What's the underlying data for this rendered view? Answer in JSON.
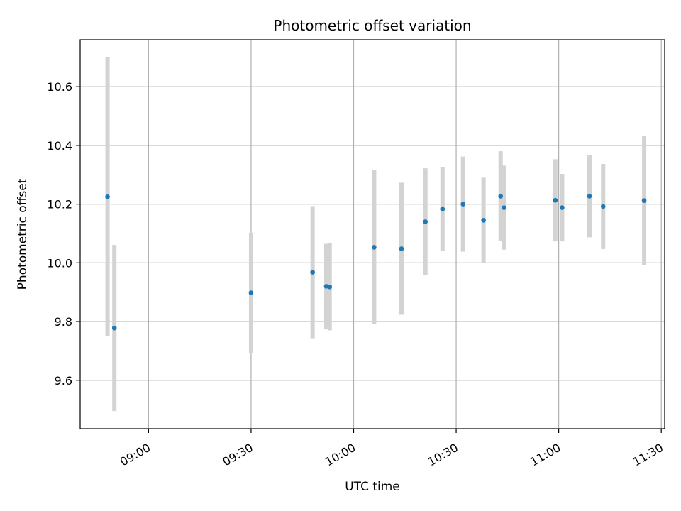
{
  "chart_data": {
    "type": "scatter",
    "title": "Photometric offset variation",
    "xlabel": "UTC time",
    "ylabel": "Photometric offset",
    "grid": true,
    "x_axis": "time",
    "xlim": [
      "08:40",
      "11:31"
    ],
    "ylim": [
      9.435,
      10.76
    ],
    "x_ticks": [
      "09:00",
      "09:30",
      "10:00",
      "10:30",
      "11:00",
      "11:30"
    ],
    "y_ticks": [
      9.6,
      9.8,
      10.0,
      10.2,
      10.4,
      10.6
    ],
    "y_tick_labels": [
      "9.6",
      "9.8",
      "10.0",
      "10.2",
      "10.4",
      "10.6"
    ],
    "marker_color": "#1f77b4",
    "errorbar_color": "#d3d3d3",
    "points": [
      {
        "time": "08:48",
        "y": 10.225,
        "err": 0.475
      },
      {
        "time": "08:50",
        "y": 9.778,
        "err": 0.283
      },
      {
        "time": "09:30",
        "y": 9.898,
        "err": 0.205
      },
      {
        "time": "09:48",
        "y": 9.968,
        "err": 0.225
      },
      {
        "time": "09:52",
        "y": 9.92,
        "err": 0.145
      },
      {
        "time": "09:53",
        "y": 9.918,
        "err": 0.148
      },
      {
        "time": "10:06",
        "y": 10.053,
        "err": 0.262
      },
      {
        "time": "10:14",
        "y": 10.048,
        "err": 0.225
      },
      {
        "time": "10:21",
        "y": 10.14,
        "err": 0.182
      },
      {
        "time": "10:26",
        "y": 10.183,
        "err": 0.142
      },
      {
        "time": "10:32",
        "y": 10.2,
        "err": 0.162
      },
      {
        "time": "10:38",
        "y": 10.145,
        "err": 0.145
      },
      {
        "time": "10:43",
        "y": 10.227,
        "err": 0.153
      },
      {
        "time": "10:44",
        "y": 10.188,
        "err": 0.143
      },
      {
        "time": "10:59",
        "y": 10.213,
        "err": 0.14
      },
      {
        "time": "11:01",
        "y": 10.188,
        "err": 0.115
      },
      {
        "time": "11:09",
        "y": 10.227,
        "err": 0.14
      },
      {
        "time": "11:13",
        "y": 10.192,
        "err": 0.145
      },
      {
        "time": "11:25",
        "y": 10.212,
        "err": 0.22
      }
    ]
  }
}
